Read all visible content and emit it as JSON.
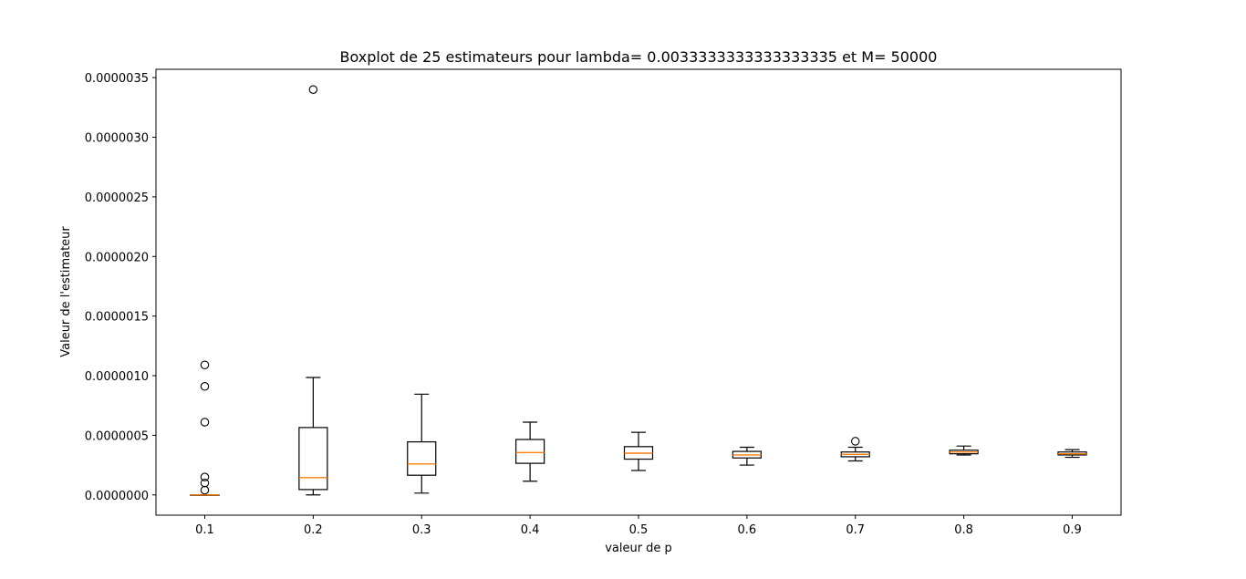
{
  "chart_data": {
    "type": "boxplot",
    "title": "Boxplot de 25 estimateurs  pour lambda= 0.0033333333333333335 et M= 50000",
    "xlabel": "valeur de p",
    "ylabel": "Valeur de l'estimateur",
    "categories": [
      "0.1",
      "0.2",
      "0.3",
      "0.4",
      "0.5",
      "0.6",
      "0.7",
      "0.8",
      "0.9"
    ],
    "y_ticks": [
      0,
      5e-07,
      1e-06,
      1.5e-06,
      2e-06,
      2.5e-06,
      3e-06,
      3.5e-06
    ],
    "y_tick_labels": [
      "0.0000000",
      "0.0000005",
      "0.0000010",
      "0.0000015",
      "0.0000020",
      "0.0000025",
      "0.0000030",
      "0.0000035"
    ],
    "ylim": [
      -1.7e-07,
      3.57e-06
    ],
    "xlim": [
      0.55,
      9.45
    ],
    "grid": false,
    "box_color": "#000000",
    "median_color": "#ff7f0e",
    "boxes": [
      {
        "whislo": 0.0,
        "q1": 0.0,
        "med": 0.0,
        "q3": 0.0,
        "whishi": 0.0,
        "fliers": [
          1.09e-06,
          9.1e-07,
          6.1e-07,
          1.5e-07,
          1e-07,
          4e-08
        ]
      },
      {
        "whislo": 0.0,
        "q1": 4.5e-08,
        "med": 1.45e-07,
        "q3": 5.65e-07,
        "whishi": 9.85e-07,
        "fliers": [
          3.4e-06
        ]
      },
      {
        "whislo": 1.5e-08,
        "q1": 1.65e-07,
        "med": 2.6e-07,
        "q3": 4.45e-07,
        "whishi": 8.45e-07,
        "fliers": []
      },
      {
        "whislo": 1.15e-07,
        "q1": 2.65e-07,
        "med": 3.55e-07,
        "q3": 4.65e-07,
        "whishi": 6.1e-07,
        "fliers": []
      },
      {
        "whislo": 2.05e-07,
        "q1": 3e-07,
        "med": 3.5e-07,
        "q3": 4.05e-07,
        "whishi": 5.25e-07,
        "fliers": []
      },
      {
        "whislo": 2.5e-07,
        "q1": 3.1e-07,
        "med": 3.35e-07,
        "q3": 3.65e-07,
        "whishi": 4e-07,
        "fliers": []
      },
      {
        "whislo": 2.85e-07,
        "q1": 3.2e-07,
        "med": 3.4e-07,
        "q3": 3.6e-07,
        "whishi": 4e-07,
        "fliers": [
          4.5e-07
        ]
      },
      {
        "whislo": 3.35e-07,
        "q1": 3.45e-07,
        "med": 3.6e-07,
        "q3": 3.75e-07,
        "whishi": 4.1e-07,
        "fliers": []
      },
      {
        "whislo": 3.15e-07,
        "q1": 3.35e-07,
        "med": 3.45e-07,
        "q3": 3.6e-07,
        "whishi": 3.8e-07,
        "fliers": []
      }
    ]
  }
}
